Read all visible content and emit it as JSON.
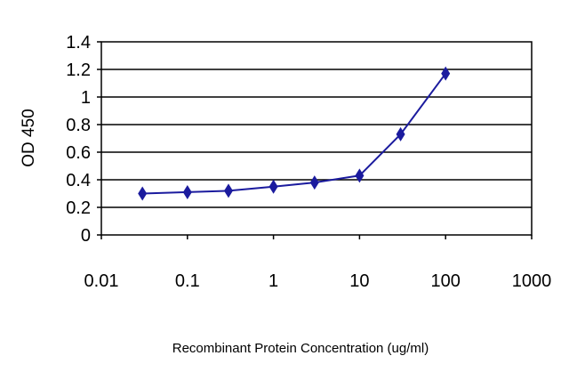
{
  "chart_data": {
    "type": "line",
    "xlabel": "Recombinant Protein Concentration (ug/ml)",
    "ylabel": "OD 450",
    "xscale": "log",
    "xlim": [
      0.01,
      1000
    ],
    "ylim": [
      0,
      1.4
    ],
    "x_ticks": [
      {
        "value": 0.01,
        "label": "0.01"
      },
      {
        "value": 0.1,
        "label": "0.1"
      },
      {
        "value": 1,
        "label": "1"
      },
      {
        "value": 10,
        "label": "10"
      },
      {
        "value": 100,
        "label": "100"
      },
      {
        "value": 1000,
        "label": "1000"
      }
    ],
    "y_ticks": [
      {
        "value": 0,
        "label": "0"
      },
      {
        "value": 0.2,
        "label": "0.2"
      },
      {
        "value": 0.4,
        "label": "0.4"
      },
      {
        "value": 0.6,
        "label": "0.6"
      },
      {
        "value": 0.8,
        "label": "0.8"
      },
      {
        "value": 1,
        "label": "1"
      },
      {
        "value": 1.2,
        "label": "1.2"
      },
      {
        "value": 1.4,
        "label": "1.4"
      }
    ],
    "grid": "horizontal",
    "series": [
      {
        "x": [
          0.03,
          0.1,
          0.3,
          1,
          3,
          10,
          30,
          100
        ],
        "y": [
          0.3,
          0.31,
          0.32,
          0.35,
          0.38,
          0.43,
          0.73,
          1.17
        ],
        "color": "#1b1b9e",
        "marker": "diamond"
      }
    ]
  }
}
